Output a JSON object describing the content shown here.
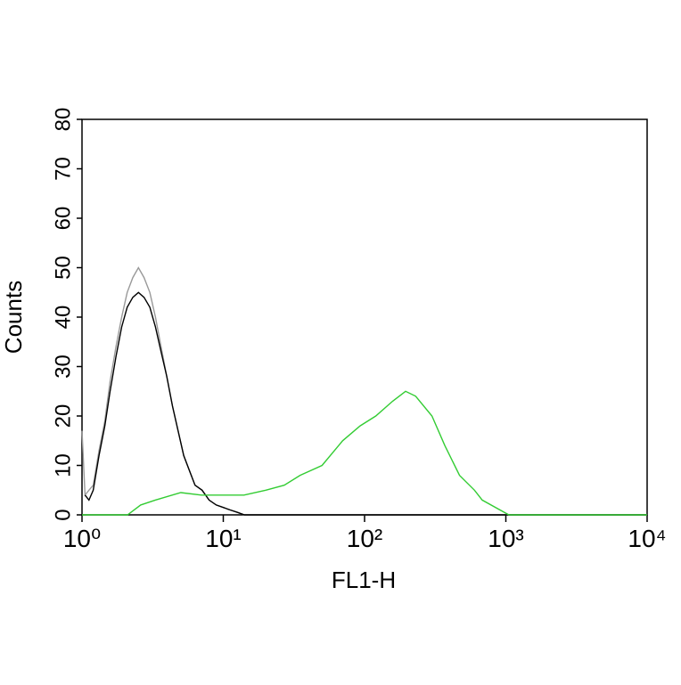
{
  "chart_data": {
    "type": "line",
    "xlabel": "FL1-H",
    "ylabel": "Counts",
    "xscale": "log",
    "xlim": [
      1,
      10000
    ],
    "xticks": [
      {
        "value": 1,
        "label": "10⁰"
      },
      {
        "value": 10,
        "label": "10¹"
      },
      {
        "value": 100,
        "label": "10²"
      },
      {
        "value": 1000,
        "label": "10³"
      },
      {
        "value": 10000,
        "label": "10⁴"
      }
    ],
    "ylim": [
      0,
      80
    ],
    "yticks": [
      0,
      10,
      20,
      30,
      40,
      50,
      60,
      70,
      80
    ],
    "series": [
      {
        "color": "#999999",
        "x": [
          1,
          1.05,
          1.12,
          1.2,
          1.32,
          1.45,
          1.58,
          1.74,
          1.91,
          2.09,
          2.29,
          2.51,
          2.75,
          3.02,
          3.31,
          3.63,
          3.98,
          4.37,
          4.79,
          5.25,
          5.75,
          6.31,
          7.08,
          7.94,
          8.91,
          10,
          11.2,
          12.6,
          14.1,
          10000
        ],
        "values": [
          17,
          4,
          5,
          6,
          13,
          19,
          27,
          34,
          40,
          45,
          48,
          50,
          48,
          45,
          40,
          34,
          28,
          22,
          17,
          12,
          9,
          6,
          5,
          3,
          2,
          1.5,
          1,
          0.5,
          0,
          0
        ]
      },
      {
        "color": "#000000",
        "x": [
          1.05,
          1.12,
          1.2,
          1.32,
          1.45,
          1.58,
          1.74,
          1.91,
          2.09,
          2.29,
          2.51,
          2.75,
          3.02,
          3.31,
          3.63,
          3.98,
          4.37,
          4.79,
          5.25,
          5.75,
          6.31,
          7.08,
          7.94,
          8.91,
          10,
          11.2,
          12.6,
          14.1,
          10000
        ],
        "values": [
          4,
          3,
          5,
          12,
          18,
          25,
          32,
          38,
          42,
          44,
          45,
          44,
          42,
          38,
          33,
          28,
          22,
          17,
          12,
          9,
          6,
          5,
          3,
          2,
          1.5,
          1,
          0.5,
          0,
          0
        ]
      },
      {
        "color": "#33cc33",
        "x": [
          1,
          2.1,
          2.6,
          3.3,
          5,
          7,
          8.5,
          14,
          20,
          27,
          35,
          50,
          70,
          93,
          120,
          158,
          195,
          230,
          300,
          370,
          470,
          600,
          680,
          1050,
          10000
        ],
        "values": [
          0,
          0,
          2,
          3,
          4.5,
          4,
          4,
          4,
          5,
          6,
          8,
          10,
          15,
          18,
          20,
          23,
          25,
          24,
          20,
          14,
          8,
          5,
          3,
          0,
          0
        ]
      }
    ]
  }
}
